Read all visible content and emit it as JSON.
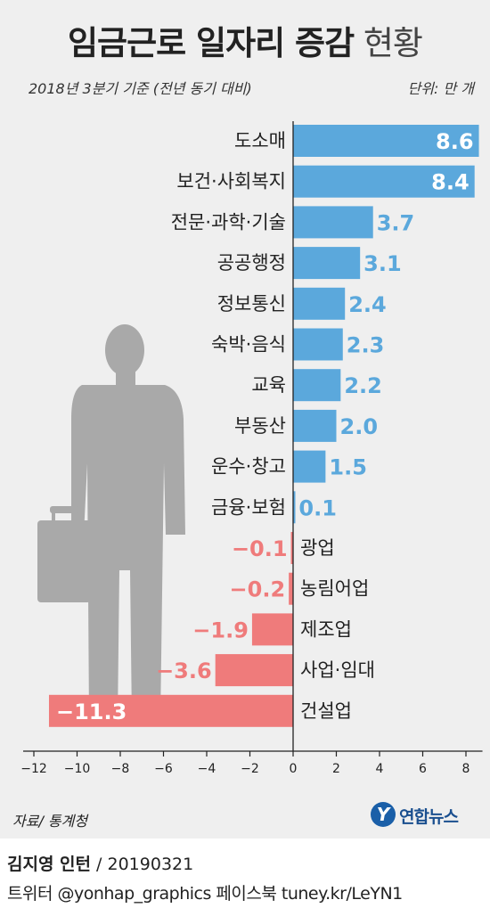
{
  "header": {
    "title_main": "임금근로 일자리 증감",
    "title_sub": "현황",
    "subtitle": "2018년 3분기 기준 (전년 동기 대비)",
    "unit": "단위: 만 개"
  },
  "chart_data": {
    "type": "bar",
    "orientation": "horizontal",
    "categories": [
      "도소매",
      "보건·사회복지",
      "전문·과학·기술",
      "공공행정",
      "정보통신",
      "숙박·음식",
      "교육",
      "부동산",
      "운수·창고",
      "금융·보험",
      "광업",
      "농림어업",
      "제조업",
      "사업·임대",
      "건설업"
    ],
    "values": [
      8.6,
      8.4,
      3.7,
      3.1,
      2.4,
      2.3,
      2.2,
      2.0,
      1.5,
      0.1,
      -0.1,
      -0.2,
      -1.9,
      -3.6,
      -11.3
    ],
    "value_labels": [
      "8.6",
      "8.4",
      "3.7",
      "3.1",
      "2.4",
      "2.3",
      "2.2",
      "2.0",
      "1.5",
      "0.1",
      "−0.1",
      "−0.2",
      "−1.9",
      "−3.6",
      "−11.3"
    ],
    "xlim": [
      -12,
      8.6
    ],
    "x_ticks": [
      -12,
      -10,
      -8,
      -6,
      -4,
      -2,
      0,
      2,
      4,
      6,
      8
    ],
    "x_tick_labels": [
      "−12",
      "−10",
      "−8",
      "−6",
      "−4",
      "−2",
      "0",
      "2",
      "4",
      "6",
      "8"
    ],
    "colors": {
      "positive": "#5ba8dc",
      "negative": "#ef7b7b",
      "axis": "#222222",
      "silhouette": "#a9a9a9"
    }
  },
  "footer": {
    "source": "자료/ 통계청",
    "logo_mark": "Y",
    "logo_text": "연합뉴스",
    "credit_name": "김지영 인턴",
    "credit_date": " / 20190321",
    "social": "트위터 @yonhap_graphics  페이스북 tuney.kr/LeYN1"
  }
}
